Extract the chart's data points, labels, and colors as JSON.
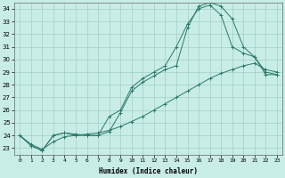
{
  "xlabel": "Humidex (Indice chaleur)",
  "bg_color": "#c8ece6",
  "grid_color": "#a0d0c8",
  "line_color": "#2a7a6a",
  "xlim": [
    -0.5,
    23.5
  ],
  "ylim": [
    22.5,
    34.5
  ],
  "xticks": [
    0,
    1,
    2,
    3,
    4,
    5,
    6,
    7,
    8,
    9,
    10,
    11,
    12,
    13,
    14,
    15,
    16,
    17,
    18,
    19,
    20,
    21,
    22,
    23
  ],
  "yticks": [
    23,
    24,
    25,
    26,
    27,
    28,
    29,
    30,
    31,
    32,
    33,
    34
  ],
  "series1_x": [
    0,
    1,
    2,
    3,
    4,
    5,
    6,
    7,
    8,
    9,
    10,
    11,
    12,
    13,
    14,
    15,
    16,
    17,
    18,
    19,
    20,
    21,
    22,
    23
  ],
  "series1_y": [
    24.0,
    23.2,
    22.8,
    24.0,
    24.2,
    24.1,
    24.0,
    24.0,
    24.3,
    25.8,
    27.5,
    28.2,
    28.7,
    29.2,
    29.5,
    32.5,
    34.2,
    34.5,
    34.2,
    33.2,
    31.0,
    30.2,
    29.0,
    28.8
  ],
  "series2_x": [
    0,
    1,
    2,
    3,
    4,
    5,
    6,
    7,
    8,
    9,
    10,
    11,
    12,
    13,
    14,
    15,
    16,
    17,
    18,
    19,
    20,
    21,
    22,
    23
  ],
  "series2_y": [
    24.0,
    23.2,
    22.8,
    24.0,
    24.2,
    24.0,
    24.0,
    24.0,
    25.5,
    26.0,
    27.8,
    28.5,
    29.0,
    29.5,
    31.0,
    32.8,
    34.0,
    34.3,
    33.5,
    31.0,
    30.5,
    30.2,
    28.8,
    28.8
  ],
  "series3_x": [
    0,
    1,
    2,
    3,
    4,
    5,
    6,
    7,
    8,
    9,
    10,
    11,
    12,
    13,
    14,
    15,
    16,
    17,
    18,
    19,
    20,
    21,
    22,
    23
  ],
  "series3_y": [
    24.0,
    23.3,
    22.9,
    23.5,
    23.9,
    24.0,
    24.1,
    24.2,
    24.4,
    24.7,
    25.1,
    25.5,
    26.0,
    26.5,
    27.0,
    27.5,
    28.0,
    28.5,
    28.9,
    29.2,
    29.5,
    29.7,
    29.2,
    29.0
  ]
}
